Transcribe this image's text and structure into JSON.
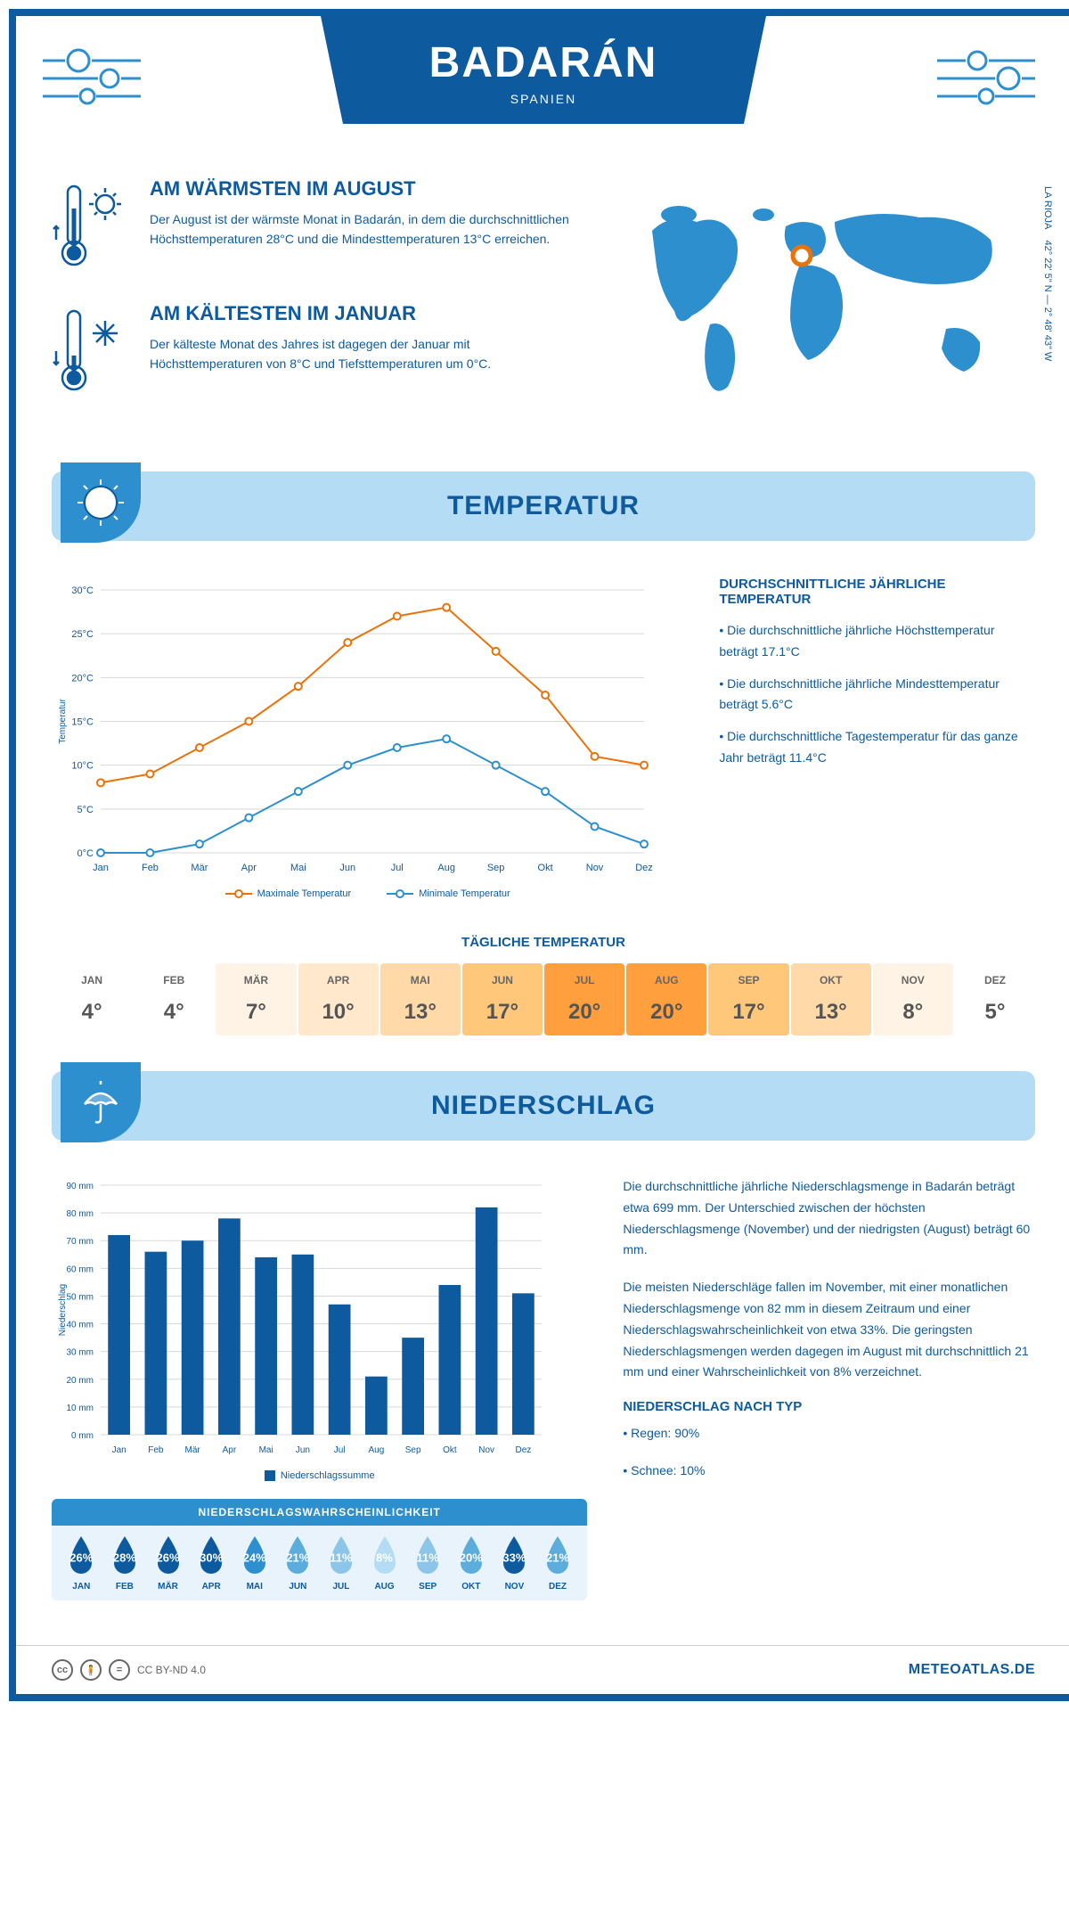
{
  "header": {
    "city": "BADARÁN",
    "country": "SPANIEN",
    "coords": "42° 22' 5\" N — 2° 48' 43\" W",
    "region": "LA RIOJA"
  },
  "intro": {
    "warm": {
      "title": "AM WÄRMSTEN IM AUGUST",
      "text": "Der August ist der wärmste Monat in Badarán, in dem die durchschnittlichen Höchsttemperaturen 28°C und die Mindesttemperaturen 13°C erreichen."
    },
    "cold": {
      "title": "AM KÄLTESTEN IM JANUAR",
      "text": "Der kälteste Monat des Jahres ist dagegen der Januar mit Höchsttemperaturen von 8°C und Tiefsttemperaturen um 0°C."
    }
  },
  "temperature": {
    "header": "TEMPERATUR",
    "info_title": "DURCHSCHNITTLICHE JÄHRLICHE TEMPERATUR",
    "info_1": "• Die durchschnittliche jährliche Höchsttemperatur beträgt 17.1°C",
    "info_2": "• Die durchschnittliche jährliche Mindesttemperatur beträgt 5.6°C",
    "info_3": "• Die durchschnittliche Tagestemperatur für das ganze Jahr beträgt 11.4°C",
    "chart": {
      "type": "line",
      "months": [
        "Jan",
        "Feb",
        "Mär",
        "Apr",
        "Mai",
        "Jun",
        "Jul",
        "Aug",
        "Sep",
        "Okt",
        "Nov",
        "Dez"
      ],
      "max_values": [
        8,
        9,
        12,
        15,
        19,
        24,
        27,
        28,
        23,
        18,
        11,
        10
      ],
      "min_values": [
        0,
        0,
        1,
        4,
        7,
        10,
        12,
        13,
        10,
        7,
        3,
        1
      ],
      "max_color": "#e8730c",
      "min_color": "#2e8fcf",
      "ylim": [
        0,
        30
      ],
      "ytick_step": 5,
      "ylabel": "Temperatur",
      "legend_max": "Maximale Temperatur",
      "legend_min": "Minimale Temperatur",
      "grid_color": "#d8d8d8"
    },
    "daily": {
      "title": "TÄGLICHE TEMPERATUR",
      "months": [
        "JAN",
        "FEB",
        "MÄR",
        "APR",
        "MAI",
        "JUN",
        "JUL",
        "AUG",
        "SEP",
        "OKT",
        "NOV",
        "DEZ"
      ],
      "values": [
        "4°",
        "4°",
        "7°",
        "10°",
        "13°",
        "17°",
        "20°",
        "20°",
        "17°",
        "13°",
        "8°",
        "5°"
      ],
      "colors": [
        "#ffffff",
        "#ffffff",
        "#fff3e5",
        "#ffe8cc",
        "#ffd9a8",
        "#ffc77a",
        "#ff9f3d",
        "#ff9f3d",
        "#ffc77a",
        "#ffd9a8",
        "#fff3e5",
        "#ffffff"
      ]
    }
  },
  "precipitation": {
    "header": "NIEDERSCHLAG",
    "text_1": "Die durchschnittliche jährliche Niederschlagsmenge in Badarán beträgt etwa 699 mm. Der Unterschied zwischen der höchsten Niederschlagsmenge (November) und der niedrigsten (August) beträgt 60 mm.",
    "text_2": "Die meisten Niederschläge fallen im November, mit einer monatlichen Niederschlagsmenge von 82 mm in diesem Zeitraum und einer Niederschlagswahrscheinlichkeit von etwa 33%. Die geringsten Niederschlagsmengen werden dagegen im August mit durchschnittlich 21 mm und einer Wahrscheinlichkeit von 8% verzeichnet.",
    "type_title": "NIEDERSCHLAG NACH TYP",
    "type_1": "• Regen: 90%",
    "type_2": "• Schnee: 10%",
    "chart": {
      "type": "bar",
      "months": [
        "Jan",
        "Feb",
        "Mär",
        "Apr",
        "Mai",
        "Jun",
        "Jul",
        "Aug",
        "Sep",
        "Okt",
        "Nov",
        "Dez"
      ],
      "values": [
        72,
        66,
        70,
        78,
        64,
        65,
        47,
        21,
        35,
        54,
        82,
        51
      ],
      "bar_color": "#0d5a9e",
      "ylim": [
        0,
        90
      ],
      "ytick_step": 10,
      "ylabel": "Niederschlag",
      "legend": "Niederschlagssumme",
      "grid_color": "#d8d8d8"
    },
    "probability": {
      "title": "NIEDERSCHLAGSWAHRSCHEINLICHKEIT",
      "months": [
        "JAN",
        "FEB",
        "MÄR",
        "APR",
        "MAI",
        "JUN",
        "JUL",
        "AUG",
        "SEP",
        "OKT",
        "NOV",
        "DEZ"
      ],
      "values": [
        "26%",
        "28%",
        "26%",
        "30%",
        "24%",
        "21%",
        "11%",
        "8%",
        "11%",
        "20%",
        "33%",
        "21%"
      ],
      "colors": [
        "#0d5a9e",
        "#0d5a9e",
        "#0d5a9e",
        "#0d5a9e",
        "#2e8fcf",
        "#5cacdc",
        "#8cc5e8",
        "#b4dcf5",
        "#8cc5e8",
        "#5cacdc",
        "#0d5a9e",
        "#5cacdc"
      ]
    }
  },
  "footer": {
    "license": "CC BY-ND 4.0",
    "site": "METEOATLAS.DE"
  }
}
